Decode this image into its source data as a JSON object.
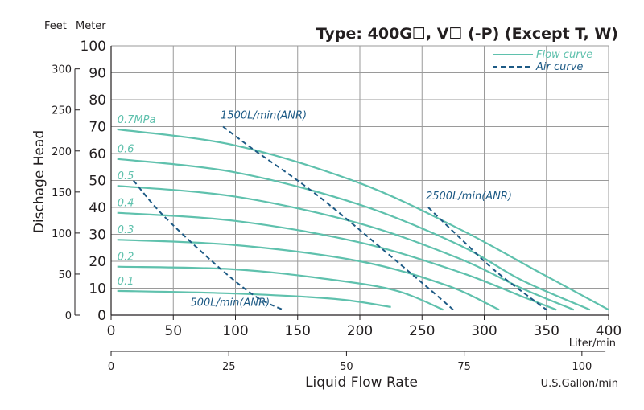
{
  "chart_data": {
    "type": "line",
    "title": "Type: 400G☐, V☐ (-P) (Except T, W)",
    "unit_labels": {
      "feet": "Feet",
      "meter": "Meter"
    },
    "ylabel": "Dischage Head",
    "xlabel": "Liquid Flow Rate",
    "x_unit": "Liter/min",
    "x2_unit": "U.S.Gallon/min",
    "xlim": [
      0,
      400
    ],
    "ylim": [
      0,
      100
    ],
    "x_ticks": [
      "0",
      "50",
      "100",
      "150",
      "200",
      "250",
      "300",
      "350",
      "400"
    ],
    "y_ticks_meter": [
      "0",
      "10",
      "20",
      "30",
      "40",
      "50",
      "60",
      "70",
      "80",
      "90",
      "100"
    ],
    "y_ticks_feet": [
      "0",
      "50",
      "100",
      "150",
      "200",
      "250",
      "300"
    ],
    "x2_ticks": [
      "0",
      "25",
      "50",
      "75",
      "100"
    ],
    "legend": [
      {
        "label": "Flow curve",
        "style": "solid"
      },
      {
        "label": "Air curve",
        "style": "dashed"
      }
    ],
    "colors": {
      "flow": "#5fc1ad",
      "air": "#1d5a85",
      "grid": "#9a9a9a",
      "text": "#231f20"
    },
    "flow_curves": [
      {
        "label": "0.7MPa",
        "points": [
          [
            5,
            69
          ],
          [
            100,
            63
          ],
          [
            200,
            49
          ],
          [
            280,
            32
          ],
          [
            340,
            17
          ],
          [
            400,
            2
          ]
        ]
      },
      {
        "label": "0.6",
        "points": [
          [
            5,
            58
          ],
          [
            100,
            53
          ],
          [
            200,
            41
          ],
          [
            280,
            26
          ],
          [
            330,
            13
          ],
          [
            385,
            2
          ]
        ]
      },
      {
        "label": "0.5",
        "points": [
          [
            5,
            48
          ],
          [
            100,
            44
          ],
          [
            200,
            34
          ],
          [
            280,
            21
          ],
          [
            330,
            10
          ],
          [
            372,
            2
          ]
        ]
      },
      {
        "label": "0.4",
        "points": [
          [
            5,
            38
          ],
          [
            100,
            35
          ],
          [
            200,
            27
          ],
          [
            280,
            16
          ],
          [
            330,
            7
          ],
          [
            358,
            2
          ]
        ]
      },
      {
        "label": "0.3",
        "points": [
          [
            5,
            28
          ],
          [
            100,
            26
          ],
          [
            200,
            20
          ],
          [
            270,
            11
          ],
          [
            312,
            2
          ]
        ]
      },
      {
        "label": "0.2",
        "points": [
          [
            5,
            18
          ],
          [
            100,
            17
          ],
          [
            180,
            13
          ],
          [
            230,
            9
          ],
          [
            267,
            2
          ]
        ]
      },
      {
        "label": "0.1",
        "points": [
          [
            5,
            9
          ],
          [
            100,
            8
          ],
          [
            180,
            6
          ],
          [
            225,
            3
          ]
        ]
      }
    ],
    "air_curves": [
      {
        "label": "500L/min(ANR)",
        "points": [
          [
            18,
            50
          ],
          [
            42,
            37
          ],
          [
            86,
            18
          ],
          [
            116,
            7
          ],
          [
            138,
            2
          ]
        ]
      },
      {
        "label": "1500L/min(ANR)",
        "points": [
          [
            90,
            70
          ],
          [
            113,
            62
          ],
          [
            170,
            43
          ],
          [
            250,
            12
          ],
          [
            275,
            2
          ]
        ]
      },
      {
        "label": "2500L/min(ANR)",
        "points": [
          [
            255,
            40
          ],
          [
            282,
            28
          ],
          [
            310,
            16
          ],
          [
            350,
            2
          ]
        ]
      }
    ]
  }
}
